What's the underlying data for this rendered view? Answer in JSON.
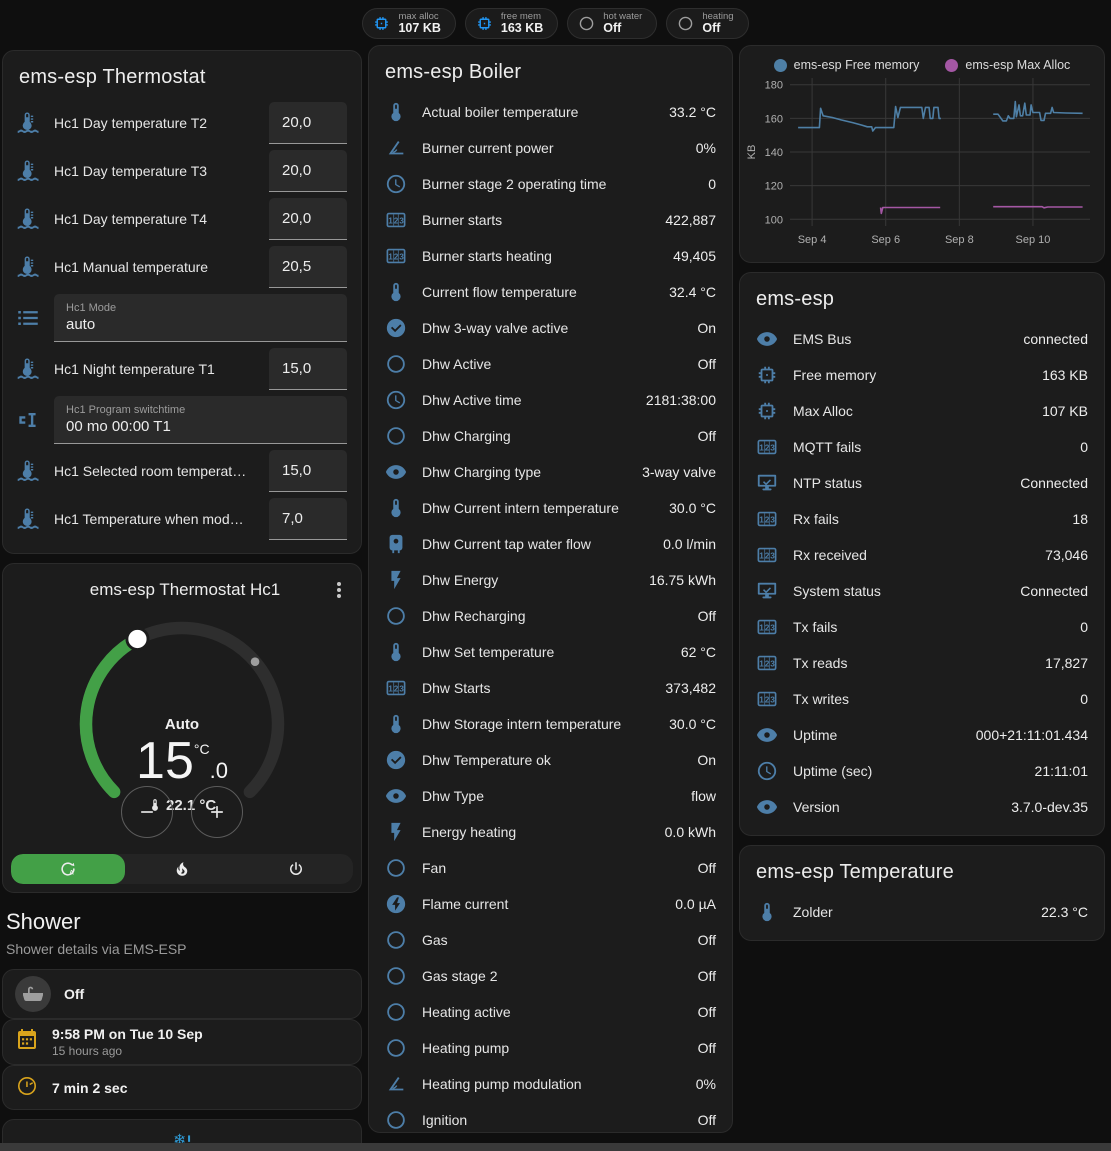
{
  "top_bar": {
    "chips": [
      {
        "icon": "chip",
        "color": "bright",
        "label": "max alloc",
        "value": "107 KB"
      },
      {
        "icon": "chip",
        "color": "bright",
        "label": "free mem",
        "value": "163 KB"
      },
      {
        "icon": "circle",
        "color": "gray",
        "label": "hot water",
        "value": "Off"
      },
      {
        "icon": "circle",
        "color": "gray",
        "label": "heating",
        "value": "Off"
      }
    ]
  },
  "thermostat_panel": {
    "title": "ems-esp Thermostat",
    "rows": [
      {
        "type": "number",
        "icon": "water-thermometer",
        "label": "Hc1 Day temperature T2",
        "value": "20,0"
      },
      {
        "type": "number",
        "icon": "water-thermometer",
        "label": "Hc1 Day temperature T3",
        "value": "20,0"
      },
      {
        "type": "number",
        "icon": "water-thermometer",
        "label": "Hc1 Day temperature T4",
        "value": "20,0"
      },
      {
        "type": "number",
        "icon": "water-thermometer",
        "label": "Hc1 Manual temperature",
        "value": "20,5"
      },
      {
        "type": "select",
        "icon": "format-list",
        "label": "Hc1 Mode",
        "value": "auto"
      },
      {
        "type": "number",
        "icon": "water-thermometer",
        "label": "Hc1 Night temperature T1",
        "value": "15,0"
      },
      {
        "type": "text",
        "icon": "state-machine",
        "label": "Hc1 Program switchtime",
        "value": "00 mo 00:00 T1"
      },
      {
        "type": "number",
        "icon": "water-thermometer",
        "label": "Hc1 Selected room temperat…",
        "value": "15,0"
      },
      {
        "type": "number",
        "icon": "water-thermometer",
        "label": "Hc1 Temperature when mod…",
        "value": "7,0"
      }
    ]
  },
  "hc1_card": {
    "title": "ems-esp Thermostat Hc1",
    "mode": "Auto",
    "target_int": "15",
    "target_unit": "°C",
    "target_dec": ".0",
    "current": "22.1 °C",
    "accent": "#43a047",
    "modes": [
      {
        "icon": "thermostat-auto",
        "name": "auto",
        "active": true
      },
      {
        "icon": "fire",
        "name": "heat",
        "active": false
      },
      {
        "icon": "power",
        "name": "off",
        "active": false
      }
    ]
  },
  "shower": {
    "title": "Shower",
    "subtitle": "Shower details via EMS-ESP",
    "items": [
      {
        "icon": "bathtub",
        "color": "gray",
        "circle": true,
        "primary": "Off",
        "secondary": ""
      },
      {
        "icon": "calendar",
        "color": "amber",
        "circle": false,
        "primary": "9:58 PM on Tue 10 Sep",
        "secondary": "15 hours ago"
      },
      {
        "icon": "timer",
        "color": "amber",
        "circle": false,
        "primary": "7 min 2 sec",
        "secondary": ""
      }
    ],
    "alert_icon": "snowflake-alert"
  },
  "boiler_panel": {
    "title": "ems-esp Boiler",
    "rows": [
      {
        "icon": "thermometer",
        "label": "Actual boiler temperature",
        "value": "33.2 °C"
      },
      {
        "icon": "angle",
        "label": "Burner current power",
        "value": "0%"
      },
      {
        "icon": "clock",
        "label": "Burner stage 2 operating time",
        "value": "0"
      },
      {
        "icon": "counter",
        "label": "Burner starts",
        "value": "422,887"
      },
      {
        "icon": "counter",
        "label": "Burner starts heating",
        "value": "49,405"
      },
      {
        "icon": "thermometer",
        "label": "Current flow temperature",
        "value": "32.4 °C"
      },
      {
        "icon": "check-circle",
        "label": "Dhw 3-way valve active",
        "value": "On"
      },
      {
        "icon": "circle",
        "label": "Dhw Active",
        "value": "Off"
      },
      {
        "icon": "clock",
        "label": "Dhw Active time",
        "value": "2181:38:00"
      },
      {
        "icon": "circle",
        "label": "Dhw Charging",
        "value": "Off"
      },
      {
        "icon": "eye",
        "label": "Dhw Charging type",
        "value": "3-way valve"
      },
      {
        "icon": "thermometer",
        "label": "Dhw Current intern temperature",
        "value": "30.0 °C"
      },
      {
        "icon": "water-boiler",
        "label": "Dhw Current tap water flow",
        "value": "0.0 l/min"
      },
      {
        "icon": "flash",
        "label": "Dhw Energy",
        "value": "16.75 kWh"
      },
      {
        "icon": "circle",
        "label": "Dhw Recharging",
        "value": "Off"
      },
      {
        "icon": "thermometer",
        "label": "Dhw Set temperature",
        "value": "62 °C"
      },
      {
        "icon": "counter",
        "label": "Dhw Starts",
        "value": "373,482"
      },
      {
        "icon": "thermometer",
        "label": "Dhw Storage intern temperature",
        "value": "30.0 °C"
      },
      {
        "icon": "check-circle",
        "label": "Dhw Temperature ok",
        "value": "On"
      },
      {
        "icon": "eye",
        "label": "Dhw Type",
        "value": "flow"
      },
      {
        "icon": "flash",
        "label": "Energy heating",
        "value": "0.0 kWh"
      },
      {
        "icon": "circle",
        "label": "Fan",
        "value": "Off"
      },
      {
        "icon": "flash-circle",
        "label": "Flame current",
        "value": "0.0 µA"
      },
      {
        "icon": "circle",
        "label": "Gas",
        "value": "Off"
      },
      {
        "icon": "circle",
        "label": "Gas stage 2",
        "value": "Off"
      },
      {
        "icon": "circle",
        "label": "Heating active",
        "value": "Off"
      },
      {
        "icon": "circle",
        "label": "Heating pump",
        "value": "Off"
      },
      {
        "icon": "angle",
        "label": "Heating pump modulation",
        "value": "0%"
      },
      {
        "icon": "circle",
        "label": "Ignition",
        "value": "Off"
      }
    ]
  },
  "emsesp_panel": {
    "title": "ems-esp",
    "rows": [
      {
        "icon": "eye",
        "label": "EMS Bus",
        "value": "connected"
      },
      {
        "icon": "chip",
        "label": "Free memory",
        "value": "163 KB"
      },
      {
        "icon": "chip",
        "label": "Max Alloc",
        "value": "107 KB"
      },
      {
        "icon": "counter",
        "label": "MQTT fails",
        "value": "0"
      },
      {
        "icon": "network-check",
        "label": "NTP status",
        "value": "Connected"
      },
      {
        "icon": "counter",
        "label": "Rx fails",
        "value": "18"
      },
      {
        "icon": "counter",
        "label": "Rx received",
        "value": "73,046"
      },
      {
        "icon": "network-check",
        "label": "System status",
        "value": "Connected"
      },
      {
        "icon": "counter",
        "label": "Tx fails",
        "value": "0"
      },
      {
        "icon": "counter",
        "label": "Tx reads",
        "value": "17,827"
      },
      {
        "icon": "counter",
        "label": "Tx writes",
        "value": "0"
      },
      {
        "icon": "eye",
        "label": "Uptime",
        "value": "000+21:11:01.434"
      },
      {
        "icon": "clock",
        "label": "Uptime (sec)",
        "value": "21:11:01"
      },
      {
        "icon": "eye",
        "label": "Version",
        "value": "3.7.0-dev.35"
      }
    ]
  },
  "temperature_panel": {
    "title": "ems-esp Temperature",
    "rows": [
      {
        "icon": "thermometer",
        "label": "Zolder",
        "value": "22.3 °C"
      }
    ]
  },
  "chart_data": {
    "type": "line",
    "title": "",
    "xlabel": "",
    "ylabel": "KB",
    "ylim": [
      96,
      184
    ],
    "xlim": [
      3.4,
      11.55
    ],
    "yticks": [
      100,
      120,
      140,
      160,
      180
    ],
    "xticks": [
      {
        "x": 4,
        "label": "Sep 4"
      },
      {
        "x": 6,
        "label": "Sep 6"
      },
      {
        "x": 8,
        "label": "Sep 8"
      },
      {
        "x": 10,
        "label": "Sep 10"
      }
    ],
    "grid": true,
    "legend_position": "top",
    "series": [
      {
        "name": "ems-esp Free memory",
        "color": "#4e7fa5",
        "segments": [
          [
            [
              3.62,
              154.5
            ],
            [
              4.2,
              154.5
            ],
            [
              4.23,
              166
            ],
            [
              4.3,
              161.5
            ],
            [
              4.55,
              160.5
            ],
            [
              4.8,
              159
            ],
            [
              5.1,
              157.5
            ],
            [
              5.35,
              156
            ],
            [
              5.5,
              155
            ],
            [
              5.62,
              155
            ],
            [
              5.65,
              152.5
            ],
            [
              5.72,
              154.5
            ],
            [
              6.22,
              154.5
            ],
            [
              6.27,
              167
            ],
            [
              6.33,
              160.5
            ],
            [
              6.4,
              166.5
            ],
            [
              6.98,
              166.5
            ],
            [
              7.02,
              160
            ],
            [
              7.08,
              166.5
            ],
            [
              7.18,
              166.5
            ],
            [
              7.21,
              160
            ],
            [
              7.28,
              160
            ],
            [
              7.31,
              166.5
            ],
            [
              7.42,
              166.5
            ],
            [
              7.45,
              160
            ],
            [
              7.5,
              160
            ]
          ],
          [
            [
              8.92,
              162.5
            ],
            [
              9.05,
              162.5
            ],
            [
              9.1,
              161
            ],
            [
              9.18,
              158.5
            ],
            [
              9.28,
              158.5
            ],
            [
              9.33,
              161.5
            ],
            [
              9.38,
              160
            ],
            [
              9.48,
              160
            ],
            [
              9.52,
              170
            ],
            [
              9.55,
              161
            ],
            [
              9.62,
              168
            ],
            [
              9.66,
              161.5
            ],
            [
              9.72,
              161.5
            ],
            [
              9.78,
              169
            ],
            [
              9.82,
              162
            ],
            [
              9.92,
              162
            ],
            [
              9.95,
              168
            ],
            [
              10.0,
              163.5
            ],
            [
              10.18,
              163.5
            ],
            [
              10.22,
              158.8
            ],
            [
              10.3,
              158.8
            ],
            [
              10.34,
              163
            ],
            [
              10.48,
              163
            ],
            [
              10.52,
              166.5
            ],
            [
              10.56,
              163.5
            ],
            [
              10.9,
              163.2
            ],
            [
              11.35,
              163
            ]
          ]
        ]
      },
      {
        "name": "ems-esp Max Alloc",
        "color": "#a457a4",
        "segments": [
          [
            [
              5.86,
              107
            ],
            [
              5.88,
              103.5
            ],
            [
              5.92,
              107
            ],
            [
              7.48,
              107
            ]
          ],
          [
            [
              8.92,
              107.5
            ],
            [
              10.25,
              107.5
            ],
            [
              10.3,
              106.8
            ],
            [
              10.4,
              107.3
            ],
            [
              11.35,
              107.3
            ]
          ]
        ]
      }
    ]
  }
}
